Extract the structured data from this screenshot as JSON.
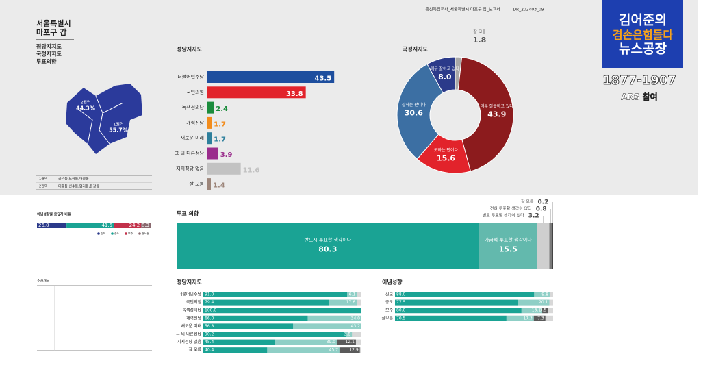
{
  "header": {
    "report": "총선특집조사_서울특별시 마포구 갑_보고서",
    "code": "DR_202403_09",
    "region_line1": "서울특별시",
    "region_line2": "마포구 갑",
    "menu": [
      "정당지지도",
      "국정지지도",
      "투표의향"
    ]
  },
  "logo": {
    "line1": "김어준의",
    "line2": "겸손은힘들다",
    "line3": "뉴스공장",
    "phone": "1877-1907",
    "sub": "ARS 참여"
  },
  "map": {
    "areas": [
      {
        "name": "2권역",
        "share": "44.3%"
      },
      {
        "name": "1권역",
        "share": "55.7%"
      }
    ],
    "table": [
      [
        "1권역",
        "공덕동,도화동,아현동"
      ],
      [
        "2권역",
        "대흥동,신수동,염리동,용강동"
      ]
    ]
  },
  "overview": {
    "title": "조사개요"
  },
  "chart_data": [
    {
      "type": "hbar",
      "title": "정당지지도",
      "categories": [
        "더불어민주당",
        "국민의힘",
        "녹색정의당",
        "개혁신당",
        "새로운 미래",
        "그 외 다른정당",
        "지지정당 없음",
        "잘 모름"
      ],
      "values": [
        43.5,
        33.8,
        2.4,
        1.7,
        1.7,
        3.9,
        11.6,
        1.4
      ],
      "colors": [
        "#1d4e9e",
        "#e2232b",
        "#1b8c3c",
        "#f28c1c",
        "#2d7f9c",
        "#9a2c8c",
        "#c2c2c2",
        "#9c857a"
      ]
    },
    {
      "type": "donut",
      "title": "국정지지도",
      "categories": [
        "잘 모름",
        "매우 잘못하고 있다",
        "못하는 편이다",
        "잘하는 편이다",
        "매우 잘하고 있다"
      ],
      "values": [
        1.8,
        43.9,
        15.6,
        30.6,
        8.0
      ],
      "value_labels": [
        "1.8",
        "43.9",
        "15.6",
        "30.6",
        "8.0"
      ],
      "colors": [
        "#a8a8a8",
        "#8c1b1d",
        "#e2232b",
        "#3c6fa3",
        "#2b3a8a"
      ]
    },
    {
      "type": "stacked-hbar",
      "title": "이념성향별 응답자 비율",
      "series": [
        {
          "name": "진보",
          "color": "#2b3a8a",
          "values": [
            26.0
          ],
          "value_labels": [
            "26.0"
          ]
        },
        {
          "name": "중도",
          "color": "#1aa394",
          "values": [
            41.5
          ]
        },
        {
          "name": "보수",
          "color": "#c2314a",
          "values": [
            24.2
          ]
        },
        {
          "name": "잘모름",
          "color": "#8a6a70",
          "values": [
            8.3
          ]
        }
      ]
    },
    {
      "type": "stacked-hbar",
      "title": "투표 의향",
      "series": [
        {
          "name": "반드시 투표할 생각이다",
          "color": "#1aa394",
          "values": [
            80.3
          ]
        },
        {
          "name": "가급적 투표할 생각이다",
          "color": "#63b9ad",
          "values": [
            15.5
          ]
        },
        {
          "name": "별로 투표할 생각이 없다",
          "color": "#cfcfcf",
          "values": [
            3.2
          ]
        },
        {
          "name": "전혀 투표할 생각이 없다",
          "color": "#7a7a7a",
          "values": [
            0.8
          ]
        },
        {
          "name": "잘 모름",
          "color": "#444444",
          "values": [
            0.2
          ]
        }
      ]
    },
    {
      "type": "stacked-hbar",
      "title": "정당지지도",
      "categories": [
        "더불어민주당",
        "국민의힘",
        "녹색정의당",
        "개혁신당",
        "새로운 미래",
        "그 외 다른정당",
        "지지정당 없음",
        "잘 모름"
      ],
      "series": [
        {
          "color": "#1aa394",
          "values": [
            91.0,
            79.4,
            100.0,
            66.0,
            56.8,
            90.2,
            45.4,
            40.4
          ],
          "value_labels": [
            "91.0",
            "79.4",
            "100.0",
            "66.0",
            "56.8",
            "90.2",
            "45.4",
            "40.4"
          ]
        },
        {
          "color": "#8fcfc6",
          "values": [
            6.1,
            17.6,
            null,
            34.0,
            43.2,
            3.8,
            39.0,
            45.7
          ],
          "value_labels": [
            "6.1",
            "17.6",
            null,
            "34.0",
            "43.2",
            "3.8",
            "39.0",
            "45.7"
          ]
        },
        {
          "color": "#5a5a5a",
          "values": [
            null,
            null,
            null,
            null,
            null,
            null,
            12.1,
            12.9
          ]
        }
      ]
    },
    {
      "type": "stacked-hbar",
      "title": "이념성향",
      "categories": [
        "진보",
        "중도",
        "보수",
        "잘모름"
      ],
      "series": [
        {
          "color": "#1aa394",
          "values": [
            88.0,
            77.5,
            80.0,
            70.5
          ],
          "value_labels": [
            "88.0",
            "77.5",
            "80.0",
            "70.5"
          ]
        },
        {
          "color": "#8fcfc6",
          "values": [
            9.8,
            20.1,
            13.1,
            17.3
          ]
        },
        {
          "color": "#5a5a5a",
          "values": [
            null,
            null,
            3.5,
            7.3
          ]
        }
      ]
    }
  ]
}
